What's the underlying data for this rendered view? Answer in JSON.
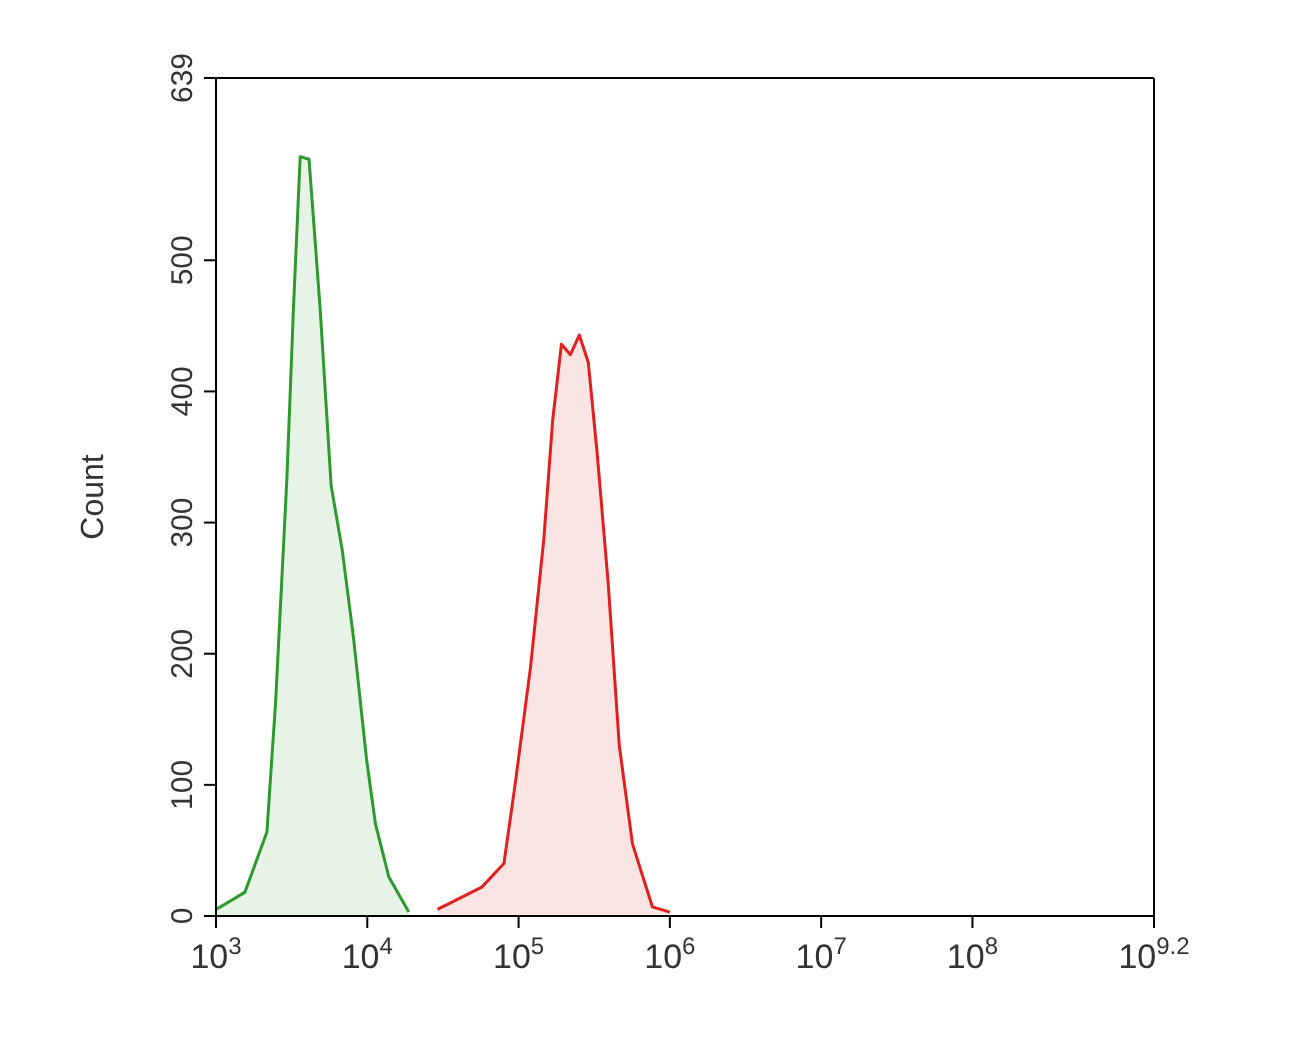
{
  "chart_data": {
    "type": "area",
    "ylabel": "Count",
    "log": "x",
    "xlim": [
      1000,
      1584893192
    ],
    "ylim": [
      0,
      639
    ],
    "xticks": [
      {
        "value": 1000,
        "label": "10$^{3}$"
      },
      {
        "value": 10000,
        "label": "10$^{4}$"
      },
      {
        "value": 100000,
        "label": "10$^{5}$"
      },
      {
        "value": 1000000,
        "label": "10$^{6}$"
      },
      {
        "value": 10000000,
        "label": "10$^{7}$"
      },
      {
        "value": 100000000,
        "label": "10$^{8}$"
      },
      {
        "value": 1584893192,
        "label": "10$^{9.2}$"
      }
    ],
    "yticks": [
      0,
      100,
      200,
      300,
      400,
      500,
      639
    ],
    "series": [
      {
        "color": "#2e9a2e",
        "x": [
          1000,
          1550,
          2170,
          2480,
          2940,
          3250,
          3600,
          4120,
          4880,
          5770,
          6830,
          8090,
          9900,
          11330,
          13870,
          18800
        ],
        "values": [
          5,
          18,
          64,
          164,
          333,
          463,
          579,
          577,
          463,
          328,
          279,
          213,
          119,
          70,
          30,
          3
        ]
      },
      {
        "color": "#e02020",
        "x": [
          29100,
          57100,
          80000,
          94800,
          120000,
          147000,
          168000,
          192000,
          220000,
          252000,
          289000,
          330000,
          391000,
          463000,
          566000,
          766000,
          1000000
        ],
        "values": [
          5,
          22,
          40,
          100,
          190,
          288,
          378,
          436,
          428,
          443,
          422,
          354,
          254,
          130,
          55,
          7,
          3
        ]
      }
    ]
  }
}
